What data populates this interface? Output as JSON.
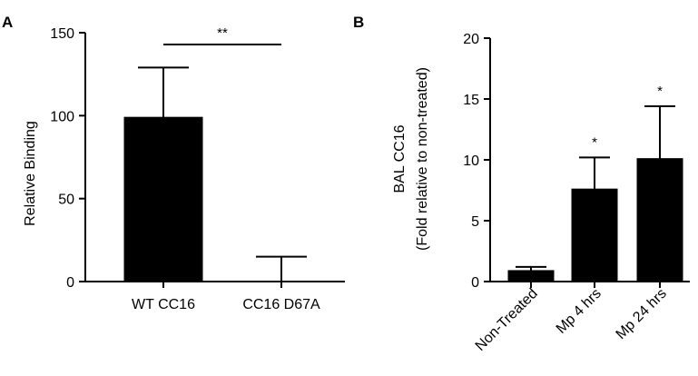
{
  "chart_data": [
    {
      "type": "bar",
      "panel": "A",
      "categories": [
        "WT CC16",
        "CC16 D67A"
      ],
      "values": [
        99,
        0
      ],
      "errors": [
        30,
        15
      ],
      "ylabel": "Relative Binding",
      "ylim": [
        0,
        150
      ],
      "yticks": [
        0,
        50,
        100,
        150
      ],
      "significance": [
        {
          "between": [
            0,
            1
          ],
          "label": "**"
        }
      ],
      "bar_color": "#000000",
      "grid": false
    },
    {
      "type": "bar",
      "panel": "B",
      "categories": [
        "Non-Treated",
        "Mp 4 hrs",
        "Mp 24 hrs"
      ],
      "values": [
        0.9,
        7.6,
        10.1
      ],
      "errors": [
        0.3,
        2.6,
        4.3
      ],
      "ylabel": "BAL CC16",
      "ylabel2": "(Fold relative to non-treated)",
      "ylim": [
        0,
        20
      ],
      "yticks": [
        0,
        5,
        10,
        15,
        20
      ],
      "significance": [
        {
          "bar": 1,
          "label": "*"
        },
        {
          "bar": 2,
          "label": "*"
        }
      ],
      "bar_color": "#000000",
      "grid": false
    }
  ]
}
